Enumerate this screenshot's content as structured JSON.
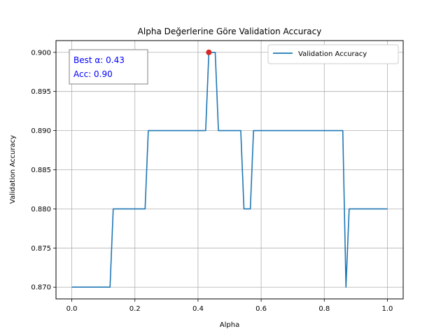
{
  "chart_data": {
    "type": "line",
    "title": "Alpha Değerlerine Göre Validation Accuracy",
    "xlabel": "Alpha",
    "ylabel": "Validation Accuracy",
    "xlim": [
      -0.05,
      1.05
    ],
    "ylim": [
      0.8685,
      0.9015
    ],
    "xticks": [
      0.0,
      0.2,
      0.4,
      0.6,
      0.8,
      1.0
    ],
    "xtick_labels": [
      "0.0",
      "0.2",
      "0.4",
      "0.6",
      "0.8",
      "1.0"
    ],
    "yticks": [
      0.87,
      0.875,
      0.88,
      0.885,
      0.89,
      0.895,
      0.9
    ],
    "ytick_labels": [
      "0.870",
      "0.875",
      "0.880",
      "0.885",
      "0.890",
      "0.895",
      "0.900"
    ],
    "grid": true,
    "legend_position": "top-right",
    "series": [
      {
        "name": "Validation Accuracy",
        "color": "#1f77b4",
        "x": [
          0.0,
          0.0101,
          0.0202,
          0.0303,
          0.0404,
          0.0505,
          0.0606,
          0.0707,
          0.0808,
          0.0909,
          0.101,
          0.1111,
          0.1212,
          0.1313,
          0.1414,
          0.1515,
          0.1616,
          0.1717,
          0.1818,
          0.1919,
          0.202,
          0.2121,
          0.2222,
          0.2323,
          0.2424,
          0.2525,
          0.2626,
          0.2727,
          0.2828,
          0.2929,
          0.303,
          0.3131,
          0.3232,
          0.3333,
          0.3434,
          0.3535,
          0.3636,
          0.3737,
          0.3838,
          0.3939,
          0.404,
          0.4141,
          0.4242,
          0.4343,
          0.4444,
          0.4545,
          0.4646,
          0.4747,
          0.4848,
          0.4949,
          0.5051,
          0.5152,
          0.5253,
          0.5354,
          0.5455,
          0.5556,
          0.5657,
          0.5758,
          0.5859,
          0.596,
          0.6061,
          0.6162,
          0.6263,
          0.6364,
          0.6465,
          0.6566,
          0.6667,
          0.6768,
          0.6869,
          0.697,
          0.7071,
          0.7172,
          0.7273,
          0.7374,
          0.7475,
          0.7576,
          0.7677,
          0.7778,
          0.7879,
          0.798,
          0.8081,
          0.8182,
          0.8283,
          0.8384,
          0.8485,
          0.8586,
          0.8687,
          0.8788,
          0.8889,
          0.899,
          0.9091,
          0.9192,
          0.9293,
          0.9394,
          0.9495,
          0.9596,
          0.9697,
          0.9798,
          0.9899,
          1.0
        ],
        "y": [
          0.87,
          0.87,
          0.87,
          0.87,
          0.87,
          0.87,
          0.87,
          0.87,
          0.87,
          0.87,
          0.87,
          0.87,
          0.87,
          0.88,
          0.88,
          0.88,
          0.88,
          0.88,
          0.88,
          0.88,
          0.88,
          0.88,
          0.88,
          0.88,
          0.89,
          0.89,
          0.89,
          0.89,
          0.89,
          0.89,
          0.89,
          0.89,
          0.89,
          0.89,
          0.89,
          0.89,
          0.89,
          0.89,
          0.89,
          0.89,
          0.89,
          0.89,
          0.89,
          0.9,
          0.9,
          0.9,
          0.89,
          0.89,
          0.89,
          0.89,
          0.89,
          0.89,
          0.89,
          0.89,
          0.88,
          0.88,
          0.88,
          0.89,
          0.89,
          0.89,
          0.89,
          0.89,
          0.89,
          0.89,
          0.89,
          0.89,
          0.89,
          0.89,
          0.89,
          0.89,
          0.89,
          0.89,
          0.89,
          0.89,
          0.89,
          0.89,
          0.89,
          0.89,
          0.89,
          0.89,
          0.89,
          0.89,
          0.89,
          0.89,
          0.89,
          0.89,
          0.87,
          0.88,
          0.88,
          0.88,
          0.88,
          0.88,
          0.88,
          0.88,
          0.88,
          0.88,
          0.88,
          0.88,
          0.88,
          0.88
        ]
      }
    ],
    "best_point": {
      "x": 0.4343,
      "y": 0.9,
      "color": "#d62728"
    },
    "annotation": {
      "line1": "Best α: 0.43",
      "line2": "Acc: 0.90",
      "color": "#0000ff"
    }
  }
}
